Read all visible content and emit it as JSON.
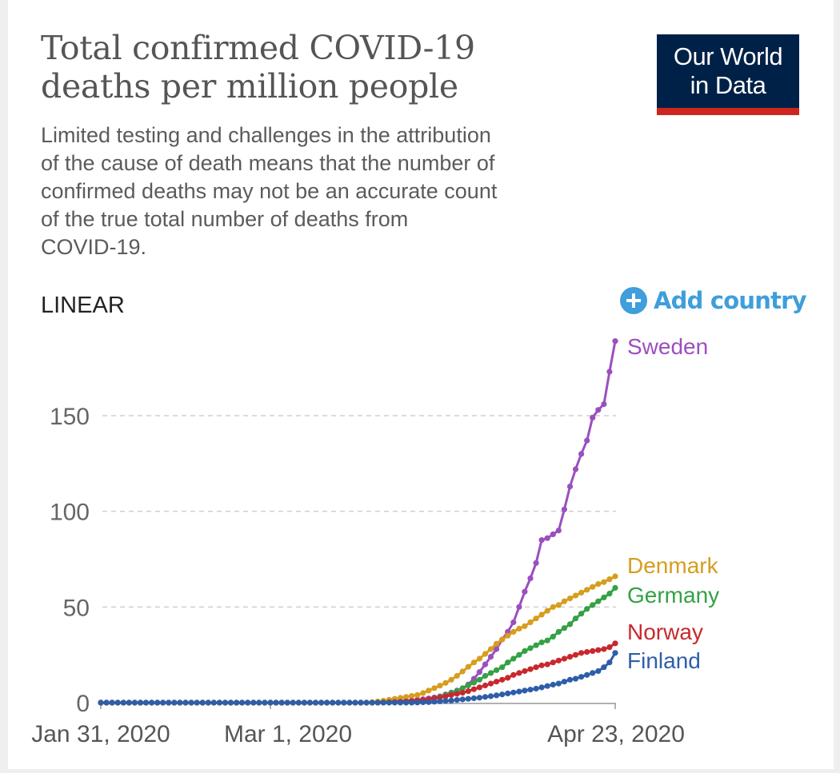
{
  "header": {
    "title_line1": "Total confirmed COVID-19",
    "title_line2": "deaths per million people",
    "subtitle_lines": [
      "Limited testing and challenges in the attribution",
      "of the cause of death means that the number of",
      "confirmed deaths may not be an accurate count",
      "of the true total number of deaths from",
      "COVID-19."
    ]
  },
  "logo": {
    "line1": "Our World",
    "line2": "in Data",
    "colors": {
      "background": "#002147",
      "stripe": "#ce261e"
    }
  },
  "controls": {
    "scale_label": "LINEAR",
    "add_country_label": "Add country",
    "add_icon": "plus-circle-icon",
    "accent": "#3f9edb"
  },
  "chart_data": {
    "type": "line",
    "x_start": "Jan 31, 2020",
    "x_end": "Apr 23, 2020",
    "x_ticks": [
      "Jan 31, 2020",
      "Mar 1, 2020",
      "Apr 23, 2020"
    ],
    "y_ticks": [
      0,
      50,
      100,
      150
    ],
    "ylim": [
      0,
      190
    ],
    "grid": true,
    "legend": "line-end labels",
    "series": [
      {
        "name": "Sweden",
        "color": "#9b4fbf",
        "values": [
          0,
          0,
          0,
          0,
          0,
          0,
          0,
          0,
          0,
          0,
          0,
          0,
          0,
          0,
          0,
          0,
          0,
          0,
          0,
          0,
          0,
          0,
          0,
          0,
          0,
          0,
          0,
          0,
          0,
          0,
          0,
          0,
          0,
          0,
          0,
          0,
          0,
          0,
          0,
          0,
          0,
          0,
          0,
          0,
          0,
          0,
          0,
          0,
          0.1,
          0.2,
          0.3,
          0.5,
          0.7,
          0.9,
          1,
          1.2,
          1.5,
          1.8,
          2.2,
          2.7,
          3.3,
          4.3,
          5.3,
          6.3,
          7.5,
          9.5,
          12.5,
          16,
          20,
          24,
          28,
          33,
          37,
          42,
          50,
          58,
          65,
          73,
          85,
          86,
          88,
          90,
          101,
          113,
          122,
          130,
          137,
          149,
          153,
          156,
          173,
          189
        ]
      },
      {
        "name": "Denmark",
        "color": "#d69d1e",
        "values": [
          0,
          0,
          0,
          0,
          0,
          0,
          0,
          0,
          0,
          0,
          0,
          0,
          0,
          0,
          0,
          0,
          0,
          0,
          0,
          0,
          0,
          0,
          0,
          0,
          0,
          0,
          0,
          0,
          0,
          0,
          0,
          0,
          0,
          0,
          0,
          0,
          0,
          0,
          0,
          0,
          0,
          0,
          0,
          0,
          0,
          0,
          0,
          0,
          0.2,
          0.6,
          1,
          1.5,
          2,
          2.5,
          3,
          3.5,
          4,
          5,
          6.3,
          7.6,
          8.9,
          10.3,
          12,
          14,
          16.3,
          18.7,
          21,
          23,
          25.5,
          28,
          30.8,
          33,
          35,
          37,
          38.7,
          40,
          42,
          44,
          46,
          48,
          50,
          51,
          53,
          54.5,
          56,
          57.5,
          59,
          60.5,
          62,
          63,
          64.5,
          66
        ]
      },
      {
        "name": "Germany",
        "color": "#34a145",
        "values": [
          0,
          0,
          0,
          0,
          0,
          0,
          0,
          0,
          0,
          0,
          0,
          0,
          0,
          0,
          0,
          0,
          0,
          0,
          0,
          0,
          0,
          0,
          0,
          0,
          0,
          0,
          0,
          0,
          0,
          0,
          0,
          0,
          0,
          0,
          0,
          0,
          0,
          0,
          0,
          0,
          0,
          0,
          0,
          0,
          0,
          0,
          0,
          0,
          0,
          0.1,
          0.1,
          0.2,
          0.3,
          0.4,
          0.6,
          0.8,
          1,
          1.3,
          1.7,
          2.3,
          3,
          4,
          5,
          6,
          7.5,
          9,
          10.5,
          12,
          14,
          15.5,
          17,
          18.5,
          21,
          23,
          25,
          27,
          28.5,
          30,
          31.5,
          32.5,
          34.5,
          37,
          39,
          41,
          44,
          46.5,
          49,
          51,
          53,
          55,
          57,
          60
        ]
      },
      {
        "name": "Norway",
        "color": "#c8282d",
        "values": [
          0,
          0,
          0,
          0,
          0,
          0,
          0,
          0,
          0,
          0,
          0,
          0,
          0,
          0,
          0,
          0,
          0,
          0,
          0,
          0,
          0,
          0,
          0,
          0,
          0,
          0,
          0,
          0,
          0,
          0,
          0,
          0,
          0,
          0,
          0,
          0,
          0,
          0,
          0,
          0,
          0,
          0,
          0,
          0,
          0,
          0,
          0,
          0,
          0,
          0,
          0.1,
          0.2,
          0.3,
          0.4,
          0.6,
          0.8,
          1,
          1.3,
          1.7,
          2.2,
          2.7,
          3.3,
          4,
          4.6,
          5.2,
          6,
          7,
          8,
          9,
          10,
          11,
          12,
          13,
          14.5,
          15.5,
          16.5,
          17.5,
          18.5,
          19.5,
          20,
          21,
          22,
          23,
          24,
          25,
          26,
          26.5,
          27,
          27.5,
          28,
          29,
          31
        ]
      },
      {
        "name": "Finland",
        "color": "#2e5ea8",
        "values": [
          0,
          0,
          0,
          0,
          0,
          0,
          0,
          0,
          0,
          0,
          0,
          0,
          0,
          0,
          0,
          0,
          0,
          0,
          0,
          0,
          0,
          0,
          0,
          0,
          0,
          0,
          0,
          0,
          0,
          0,
          0,
          0,
          0,
          0,
          0,
          0,
          0,
          0,
          0,
          0,
          0,
          0,
          0,
          0,
          0,
          0,
          0,
          0,
          0,
          0,
          0,
          0,
          0,
          0,
          0,
          0,
          0.1,
          0.2,
          0.3,
          0.5,
          0.7,
          0.9,
          1.1,
          1.4,
          1.7,
          2,
          2.3,
          2.6,
          3,
          3.4,
          3.8,
          4.3,
          4.8,
          5.3,
          5.8,
          6.3,
          6.8,
          7.3,
          8,
          8.7,
          9.4,
          10,
          11,
          12,
          12.5,
          13.5,
          14.5,
          15.5,
          16.5,
          18.5,
          21,
          26
        ]
      }
    ]
  }
}
